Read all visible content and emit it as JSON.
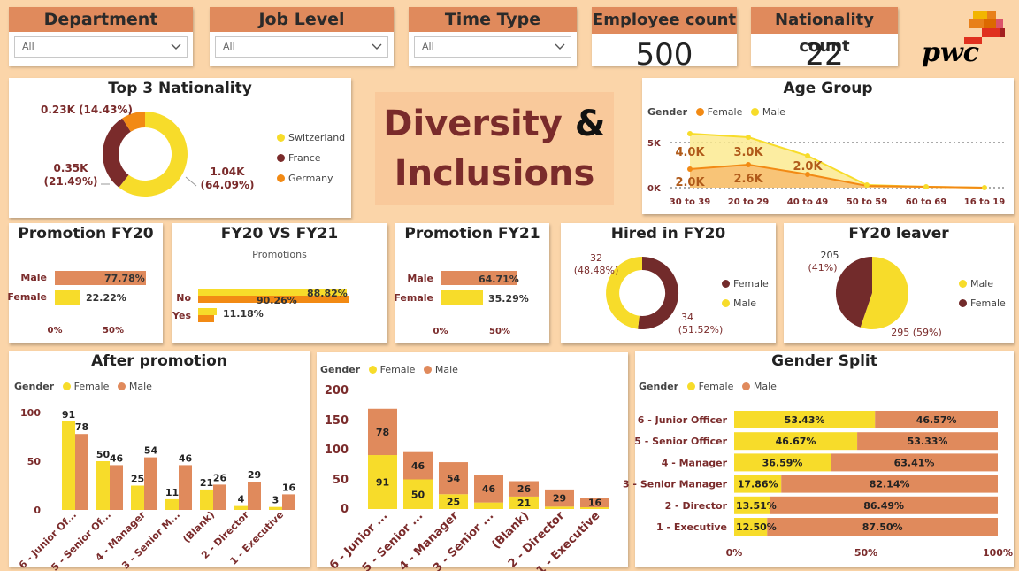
{
  "filters": [
    {
      "label": "Department",
      "value": "All"
    },
    {
      "label": "Job Level",
      "value": "All"
    },
    {
      "label": "Time Type",
      "value": "All"
    }
  ],
  "kpis": {
    "employee_label": "Employee count",
    "employee_value": "500",
    "nationality_label": "Nationality count",
    "nationality_value": "22"
  },
  "brand": {
    "logo_text": "pwc"
  },
  "banner": {
    "line1": "Diversity",
    "amp": "&",
    "line2": "Inclusions"
  },
  "colors": {
    "yellow": "#f7dc2a",
    "orange": "#f28a14",
    "salmon": "#e08a5c",
    "maroon": "#7a2b2b"
  },
  "top_nationality": {
    "title": "Top 3 Nationality",
    "legend": [
      "Switzerland",
      "France",
      "Germany"
    ],
    "labels": {
      "switzerland": [
        "1.04K",
        "(64.09%)"
      ],
      "france": [
        "0.35K",
        "(21.49%)"
      ],
      "germany": "0.23K (14.43%)"
    }
  },
  "age_group": {
    "title": "Age Group",
    "legend_title": "Gender",
    "legend": [
      "Female",
      "Male"
    ],
    "yticks": [
      "5K",
      "0K"
    ],
    "labels": {
      "male1": "4.0K",
      "male2": "3.0K",
      "male3": "2.0K",
      "female1": "2.0K",
      "female2": "2.6K"
    }
  },
  "promo20": {
    "title": "Promotion FY20",
    "male_label": "Male",
    "female_label": "Female",
    "male_value": "77.78%",
    "female_value": "22.22%",
    "axis": [
      "0%",
      "50%"
    ]
  },
  "fy20vs21": {
    "title": "FY20 VS FY21",
    "subtitle": "Promotions",
    "no_label": "No",
    "yes_label": "Yes",
    "no_fy21": "88.82%",
    "no_fy20": "90.26%",
    "yes_value": "11.18%"
  },
  "promo21": {
    "title": "Promotion FY21",
    "male_label": "Male",
    "female_label": "Female",
    "male_value": "64.71%",
    "female_value": "35.29%",
    "axis": [
      "0%",
      "50%"
    ]
  },
  "hired": {
    "title": "Hired in FY20",
    "legend": [
      "Female",
      "Male"
    ],
    "male_label": [
      "32",
      "(48.48%)"
    ],
    "female_label": [
      "34",
      "(51.52%)"
    ]
  },
  "leaver": {
    "title": "FY20 leaver",
    "legend": [
      "Male",
      "Female"
    ],
    "female_label": [
      "205",
      "(41%)"
    ],
    "male_label": "295 (59%)"
  },
  "after_promo": {
    "title": "After promotion",
    "legend_title": "Gender",
    "legend": [
      "Female",
      "Male"
    ],
    "yticks": [
      "100",
      "50",
      "0"
    ],
    "categories": [
      "6 - Junior Of...",
      "5 - Senior Of...",
      "4 - Manager",
      "3 - Senior M...",
      "(Blank)",
      "2 - Director",
      "1 - Executive"
    ],
    "female": [
      91,
      50,
      25,
      11,
      21,
      4,
      3
    ],
    "male": [
      78,
      46,
      54,
      46,
      26,
      29,
      16
    ]
  },
  "stacked": {
    "legend_title": "Gender",
    "legend": [
      "Female",
      "Male"
    ],
    "yticks": [
      "200",
      "150",
      "100",
      "50",
      "0"
    ],
    "categories": [
      "6 - Junior ...",
      "5 - Senior ...",
      "4 - Manager",
      "3 - Senior ...",
      "(Blank)",
      "2 - Director",
      "1 - Executive"
    ],
    "female": [
      91,
      50,
      25,
      11,
      21,
      4,
      3
    ],
    "male": [
      78,
      46,
      54,
      46,
      26,
      29,
      16
    ],
    "female_labels": [
      "91",
      "50",
      "25",
      "",
      "21",
      "",
      ""
    ],
    "male_labels": [
      "78",
      "46",
      "54",
      "46",
      "26",
      "29",
      "16"
    ]
  },
  "gender_split": {
    "title": "Gender Split",
    "legend_title": "Gender",
    "legend": [
      "Female",
      "Male"
    ],
    "levels": [
      "6 - Junior Officer",
      "5 - Senior Officer",
      "4 - Manager",
      "3 - Senior Manager",
      "2 - Director",
      "1 - Executive"
    ],
    "female_labels": [
      "53.43%",
      "46.67%",
      "36.59%",
      "17.86%",
      "13.51%",
      "12.50%"
    ],
    "male_labels": [
      "46.57%",
      "53.33%",
      "63.41%",
      "82.14%",
      "86.49%",
      "87.50%"
    ],
    "axis": [
      "0%",
      "50%",
      "100%"
    ]
  },
  "chart_data": [
    {
      "type": "pie",
      "title": "Top 3 Nationality",
      "categories": [
        "Switzerland",
        "France",
        "Germany"
      ],
      "values": [
        64.09,
        21.49,
        14.43
      ],
      "units": "%"
    },
    {
      "type": "area",
      "title": "Age Group",
      "categories": [
        "30 to 39",
        "20 to 29",
        "40 to 49",
        "50 to 59",
        "60 to 69",
        "16 to 19"
      ],
      "series": [
        {
          "name": "Male",
          "values": [
            4.0,
            3.0,
            2.0,
            0.3,
            0.15,
            0.1
          ]
        },
        {
          "name": "Female",
          "values": [
            2.0,
            2.6,
            1.4,
            0.15,
            0.1,
            0.05
          ]
        }
      ],
      "ylabel": "K"
    },
    {
      "type": "bar",
      "title": "Promotion FY20",
      "categories": [
        "Male",
        "Female"
      ],
      "values": [
        77.78,
        22.22
      ]
    },
    {
      "type": "bar",
      "title": "FY20 VS FY21",
      "subtitle": "Promotions",
      "categories": [
        "No",
        "Yes"
      ],
      "series": [
        {
          "name": "FY21",
          "values": [
            88.82,
            11.18
          ]
        },
        {
          "name": "FY20",
          "values": [
            90.26,
            9.74
          ]
        }
      ]
    },
    {
      "type": "bar",
      "title": "Promotion FY21",
      "categories": [
        "Male",
        "Female"
      ],
      "values": [
        64.71,
        35.29
      ]
    },
    {
      "type": "pie",
      "title": "Hired in FY20",
      "categories": [
        "Female",
        "Male"
      ],
      "values": [
        34,
        32
      ]
    },
    {
      "type": "pie",
      "title": "FY20 leaver",
      "categories": [
        "Male",
        "Female"
      ],
      "values": [
        295,
        205
      ]
    },
    {
      "type": "bar",
      "title": "After promotion",
      "categories": [
        "6 - Junior Of...",
        "5 - Senior Of...",
        "4 - Manager",
        "3 - Senior M...",
        "(Blank)",
        "2 - Director",
        "1 - Executive"
      ],
      "series": [
        {
          "name": "Female",
          "values": [
            91,
            50,
            25,
            11,
            21,
            4,
            3
          ]
        },
        {
          "name": "Male",
          "values": [
            78,
            46,
            54,
            46,
            26,
            29,
            16
          ]
        }
      ],
      "ylim": [
        0,
        100
      ]
    },
    {
      "type": "bar",
      "title": "",
      "stacked": true,
      "categories": [
        "6 - Junior ...",
        "5 - Senior ...",
        "4 - Manager",
        "3 - Senior ...",
        "(Blank)",
        "2 - Director",
        "1 - Executive"
      ],
      "series": [
        {
          "name": "Female",
          "values": [
            91,
            50,
            25,
            11,
            21,
            4,
            3
          ]
        },
        {
          "name": "Male",
          "values": [
            78,
            46,
            54,
            46,
            26,
            29,
            16
          ]
        }
      ],
      "ylim": [
        0,
        200
      ]
    },
    {
      "type": "bar",
      "title": "Gender Split",
      "stacked": true,
      "orientation": "horizontal",
      "categories": [
        "6 - Junior Officer",
        "5 - Senior Officer",
        "4 - Manager",
        "3 - Senior Manager",
        "2 - Director",
        "1 - Executive"
      ],
      "series": [
        {
          "name": "Female",
          "values": [
            53.43,
            46.67,
            36.59,
            17.86,
            13.51,
            12.5
          ]
        },
        {
          "name": "Male",
          "values": [
            46.57,
            53.33,
            63.41,
            82.14,
            86.49,
            87.5
          ]
        }
      ],
      "xlim": [
        0,
        100
      ]
    }
  ]
}
